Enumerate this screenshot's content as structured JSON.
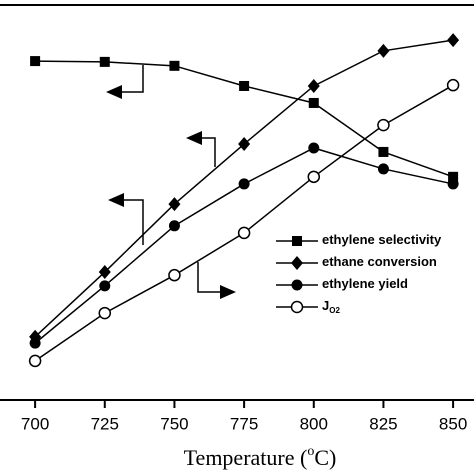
{
  "chart_data": {
    "type": "line",
    "x_label": [
      "Temperature (",
      "o",
      "C)"
    ],
    "x": [
      700,
      725,
      750,
      775,
      800,
      825,
      850
    ],
    "xlim": [
      687.4,
      857.5
    ],
    "xticks": [
      700,
      725,
      750,
      775,
      800,
      825,
      850
    ],
    "ylim": [
      0,
      100
    ],
    "series": [
      {
        "name": "ethylene selectivity",
        "marker": "square",
        "color": "#000",
        "values": [
          85.8,
          85.6,
          84.6,
          79.5,
          75.2,
          62.8,
          56.5
        ]
      },
      {
        "name": "ethane conversion",
        "marker": "diamond",
        "color": "#000",
        "values": [
          16,
          32.4,
          49.6,
          64.8,
          79.5,
          88.4,
          91.1
        ]
      },
      {
        "name": "ethylene yield",
        "marker": "circle",
        "color": "#000",
        "values": [
          14.4,
          28.9,
          44.1,
          54.7,
          63.8,
          58.5,
          54.7
        ]
      },
      {
        "name": "J",
        "legend_subscript": "O2",
        "marker": "open-circle",
        "color": "#000",
        "values": [
          9.9,
          22,
          31.6,
          42.3,
          56.5,
          69.6,
          79.7
        ]
      }
    ]
  }
}
